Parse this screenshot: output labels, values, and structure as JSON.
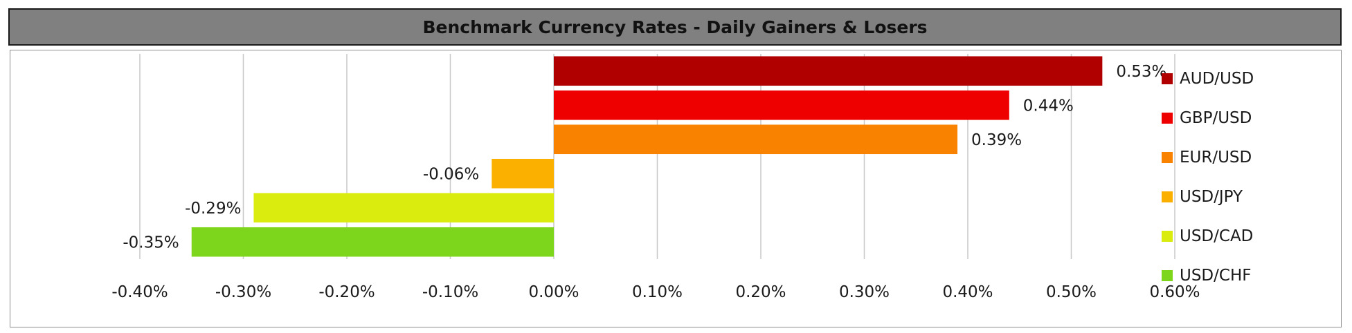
{
  "title": "Benchmark Currency Rates - Daily Gainers & Losers",
  "chart_data": {
    "type": "bar",
    "orientation": "horizontal",
    "title": "Benchmark Currency Rates - Daily Gainers & Losers",
    "xlabel": "",
    "ylabel": "",
    "xlim": [
      -0.4,
      0.6
    ],
    "x_ticks": [
      -0.4,
      -0.3,
      -0.2,
      -0.1,
      0.0,
      0.1,
      0.2,
      0.3,
      0.4,
      0.5,
      0.6
    ],
    "x_tick_labels": [
      "-0.40%",
      "-0.30%",
      "-0.20%",
      "-0.10%",
      "0.00%",
      "0.10%",
      "0.20%",
      "0.30%",
      "0.40%",
      "0.50%",
      "0.60%"
    ],
    "grid": "vertical",
    "legend_position": "right",
    "categories": [
      "AUD/USD",
      "GBP/USD",
      "EUR/USD",
      "USD/JPY",
      "USD/CAD",
      "USD/CHF"
    ],
    "values": [
      0.53,
      0.44,
      0.39,
      -0.06,
      -0.29,
      -0.35
    ],
    "data_labels": [
      "0.53%",
      "0.44%",
      "0.39%",
      "-0.06%",
      "-0.29%",
      "-0.35%"
    ],
    "colors": [
      "#b00000",
      "#ee0000",
      "#f98200",
      "#fbb000",
      "#d9ec0e",
      "#7dd61c"
    ]
  }
}
